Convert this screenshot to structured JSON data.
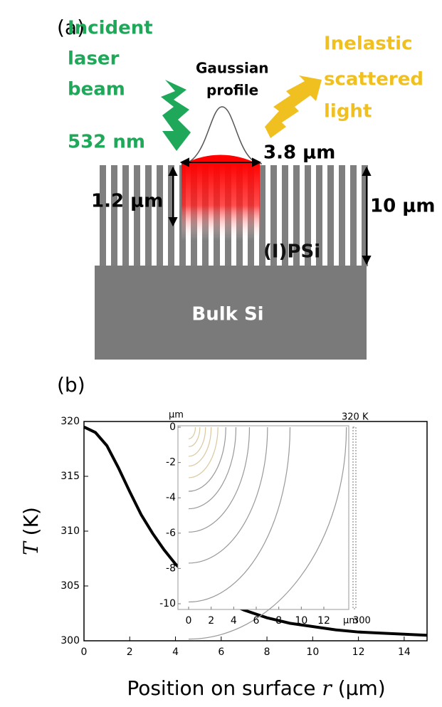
{
  "panel_a": {
    "label": "(a)",
    "incident_label": [
      "Incident",
      "laser",
      "beam",
      "532 nm"
    ],
    "gaussian_label": [
      "Gaussian",
      "profile"
    ],
    "scattered_label": [
      "Inelastic",
      "scattered",
      "light"
    ],
    "spot_size": "3.8 μm",
    "penetration_depth": "1.2 μm",
    "layer_thickness": "10 μm",
    "layer_label": "(I)PSi",
    "substrate_label": "Bulk Si"
  },
  "chart_data": {
    "type": "line",
    "panel_label": "(b)",
    "x_label_prefix": "Position on surface",
    "x_label_symbol": "r",
    "x_label_unit": "(μm)",
    "y_label_symbol": "T",
    "y_label_unit": "(K)",
    "x": [
      0,
      0.5,
      1,
      1.5,
      2,
      2.5,
      3,
      3.5,
      4,
      5,
      6,
      7,
      8,
      9,
      10,
      11,
      12,
      13,
      14,
      15
    ],
    "series": [
      {
        "name": "T",
        "color": "#000000",
        "values": [
          319.5,
          319.0,
          317.8,
          315.8,
          313.6,
          311.5,
          309.8,
          308.3,
          307.0,
          305.0,
          303.7,
          302.8,
          302.1,
          301.6,
          301.3,
          301.0,
          300.8,
          300.7,
          300.6,
          300.5
        ]
      }
    ],
    "xlim": [
      0,
      15
    ],
    "xticks": [
      0,
      2,
      4,
      6,
      8,
      10,
      12,
      14
    ],
    "ylim": [
      300,
      320
    ],
    "yticks": [
      300,
      305,
      310,
      315,
      320
    ]
  },
  "inset": {
    "x_unit": "μm",
    "y_unit": "μm",
    "xticks": [
      0,
      2,
      4,
      6,
      8,
      10,
      12
    ],
    "yticks": [
      0,
      -2,
      -4,
      -6,
      -8,
      -10
    ],
    "colorbar_max": "320 K",
    "colorbar_min": 300
  }
}
